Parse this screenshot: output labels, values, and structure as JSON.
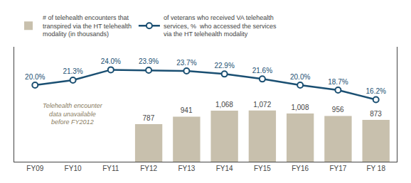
{
  "chart_data": {
    "type": "bar",
    "categories": [
      "FY09",
      "FY10",
      "FY11",
      "FY12",
      "FY13",
      "FY14",
      "FY15",
      "FY16",
      "FY17",
      "FY 18"
    ],
    "series": [
      {
        "name": "# of telehealth encounters that\ntranspired via the HT telehealth\nmodality (in thousands)",
        "type": "bar",
        "axis": "y2",
        "color": "#c8c0ad",
        "values": [
          null,
          null,
          null,
          787,
          941,
          1068,
          1072,
          1008,
          956,
          873
        ],
        "value_labels": [
          null,
          null,
          null,
          "787",
          "941",
          "1,068",
          "1,072",
          "1,008",
          "956",
          "873"
        ]
      },
      {
        "name": "of veterans who received VA telehealth\nservices, %  who accessed the services\nvia the HT telehealth modality",
        "type": "line",
        "color": "#1a4f72",
        "marker": "circle",
        "values": [
          20.0,
          21.3,
          24.0,
          23.9,
          23.7,
          22.9,
          21.6,
          20.0,
          18.7,
          16.2
        ],
        "value_labels": [
          "20.0%",
          "21.3%",
          "24.0%",
          "23.9%",
          "23.7%",
          "22.9%",
          "21.6%",
          "20.0%",
          "18.7%",
          "16.2%"
        ]
      }
    ],
    "annotations": [
      {
        "text": "Telehealth encounter\ndata unavailable\nbefore FY2012",
        "category": "FY10"
      }
    ],
    "ylim": [
      0,
      30
    ],
    "y2lim": [
      0,
      2400
    ],
    "tick_labels": "x",
    "data_labels": true,
    "grid": false,
    "legend": "top"
  }
}
